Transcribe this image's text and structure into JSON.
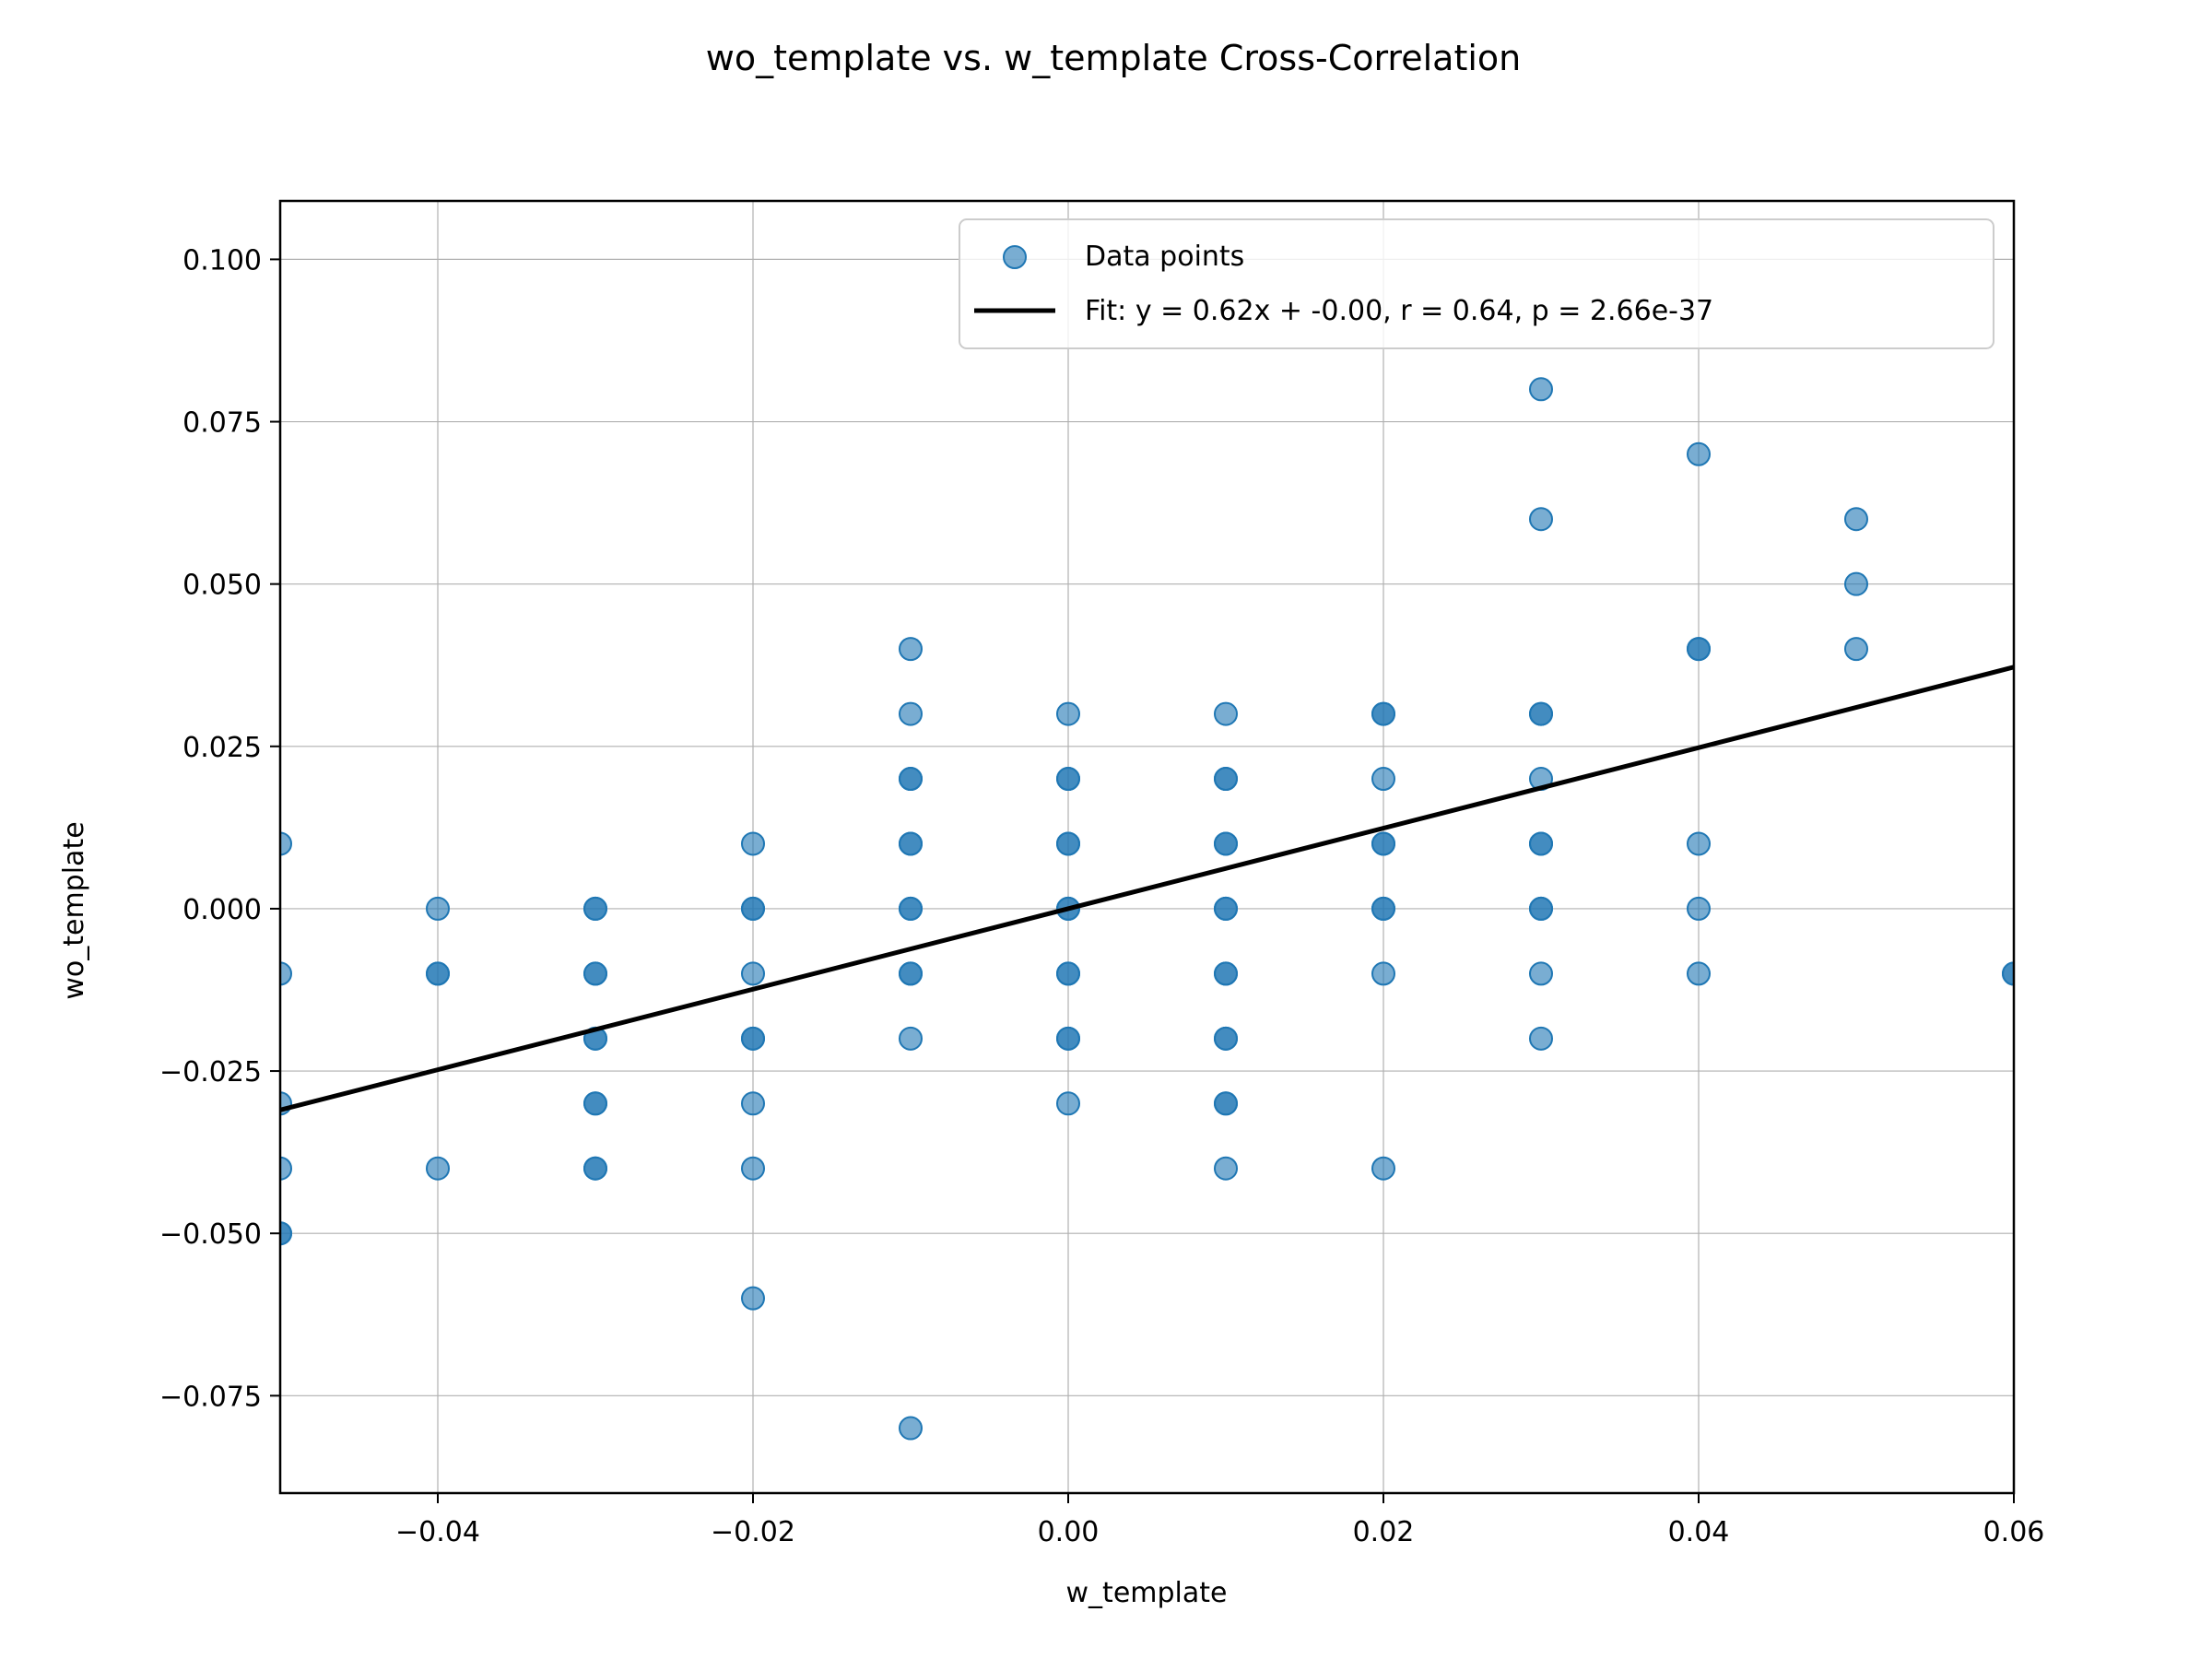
{
  "chart_data": {
    "type": "scatter",
    "title": "wo_template vs. w_template Cross-Correlation",
    "xlabel": "w_template",
    "ylabel": "wo_template",
    "xlim": [
      -0.05,
      0.06
    ],
    "ylim": [
      -0.09,
      0.109
    ],
    "xticks": [
      -0.04,
      -0.02,
      0.0,
      0.02,
      0.04,
      0.06
    ],
    "xtick_labels": [
      "−0.04",
      "−0.02",
      "0.00",
      "0.02",
      "0.04",
      "0.06"
    ],
    "yticks": [
      0.1,
      0.075,
      0.05,
      0.025,
      0.0,
      -0.025,
      -0.05,
      -0.075
    ],
    "ytick_labels": [
      "0.100",
      "0.075",
      "0.050",
      "0.025",
      "0.000",
      "−0.025",
      "−0.050",
      "−0.075"
    ],
    "grid": true,
    "legend_position": "upper right",
    "colors": {
      "points": "#1f77b4",
      "fit": "#000000"
    },
    "series": [
      {
        "name": "Data points",
        "kind": "scatter",
        "points": [
          [
            -0.05,
            0.01
          ],
          [
            -0.05,
            -0.01
          ],
          [
            -0.05,
            -0.03
          ],
          [
            -0.05,
            -0.04
          ],
          [
            -0.05,
            -0.05
          ],
          [
            -0.05,
            -0.05
          ],
          [
            -0.04,
            0.0
          ],
          [
            -0.04,
            -0.01
          ],
          [
            -0.04,
            -0.01
          ],
          [
            -0.04,
            -0.04
          ],
          [
            -0.03,
            0.0
          ],
          [
            -0.03,
            0.0
          ],
          [
            -0.03,
            -0.01
          ],
          [
            -0.03,
            -0.01
          ],
          [
            -0.03,
            -0.02
          ],
          [
            -0.03,
            -0.02
          ],
          [
            -0.03,
            -0.03
          ],
          [
            -0.03,
            -0.03
          ],
          [
            -0.03,
            -0.04
          ],
          [
            -0.03,
            -0.04
          ],
          [
            -0.02,
            0.01
          ],
          [
            -0.02,
            0.0
          ],
          [
            -0.02,
            0.0
          ],
          [
            -0.02,
            -0.01
          ],
          [
            -0.02,
            -0.02
          ],
          [
            -0.02,
            -0.02
          ],
          [
            -0.02,
            -0.03
          ],
          [
            -0.02,
            -0.04
          ],
          [
            -0.02,
            -0.06
          ],
          [
            -0.01,
            0.04
          ],
          [
            -0.01,
            0.03
          ],
          [
            -0.01,
            0.02
          ],
          [
            -0.01,
            0.02
          ],
          [
            -0.01,
            0.01
          ],
          [
            -0.01,
            0.01
          ],
          [
            -0.01,
            0.0
          ],
          [
            -0.01,
            0.0
          ],
          [
            -0.01,
            -0.01
          ],
          [
            -0.01,
            -0.01
          ],
          [
            -0.01,
            -0.02
          ],
          [
            -0.01,
            -0.08
          ],
          [
            0.0,
            0.03
          ],
          [
            0.0,
            0.02
          ],
          [
            0.0,
            0.02
          ],
          [
            0.0,
            0.01
          ],
          [
            0.0,
            0.01
          ],
          [
            0.0,
            0.0
          ],
          [
            0.0,
            0.0
          ],
          [
            0.0,
            -0.01
          ],
          [
            0.0,
            -0.01
          ],
          [
            0.0,
            -0.02
          ],
          [
            0.0,
            -0.02
          ],
          [
            0.0,
            -0.03
          ],
          [
            0.01,
            0.03
          ],
          [
            0.01,
            0.02
          ],
          [
            0.01,
            0.02
          ],
          [
            0.01,
            0.01
          ],
          [
            0.01,
            0.01
          ],
          [
            0.01,
            0.0
          ],
          [
            0.01,
            0.0
          ],
          [
            0.01,
            -0.01
          ],
          [
            0.01,
            -0.01
          ],
          [
            0.01,
            -0.02
          ],
          [
            0.01,
            -0.02
          ],
          [
            0.01,
            -0.03
          ],
          [
            0.01,
            -0.03
          ],
          [
            0.01,
            -0.04
          ],
          [
            0.02,
            0.03
          ],
          [
            0.02,
            0.03
          ],
          [
            0.02,
            0.02
          ],
          [
            0.02,
            0.01
          ],
          [
            0.02,
            0.01
          ],
          [
            0.02,
            0.0
          ],
          [
            0.02,
            0.0
          ],
          [
            0.02,
            -0.01
          ],
          [
            0.02,
            -0.04
          ],
          [
            0.03,
            0.08
          ],
          [
            0.03,
            0.06
          ],
          [
            0.03,
            0.03
          ],
          [
            0.03,
            0.03
          ],
          [
            0.03,
            0.02
          ],
          [
            0.03,
            0.01
          ],
          [
            0.03,
            0.01
          ],
          [
            0.03,
            0.0
          ],
          [
            0.03,
            0.0
          ],
          [
            0.03,
            -0.01
          ],
          [
            0.03,
            -0.02
          ],
          [
            0.04,
            0.07
          ],
          [
            0.04,
            0.04
          ],
          [
            0.04,
            0.04
          ],
          [
            0.04,
            0.01
          ],
          [
            0.04,
            0.0
          ],
          [
            0.04,
            -0.01
          ],
          [
            0.05,
            0.06
          ],
          [
            0.05,
            0.05
          ],
          [
            0.05,
            0.04
          ],
          [
            0.06,
            -0.01
          ],
          [
            0.06,
            -0.01
          ]
        ]
      },
      {
        "name": "Fit: y = 0.62x + -0.00,  r = 0.64, p = 2.66e-37",
        "kind": "line",
        "slope": 0.62,
        "intercept": 0.0
      }
    ]
  }
}
